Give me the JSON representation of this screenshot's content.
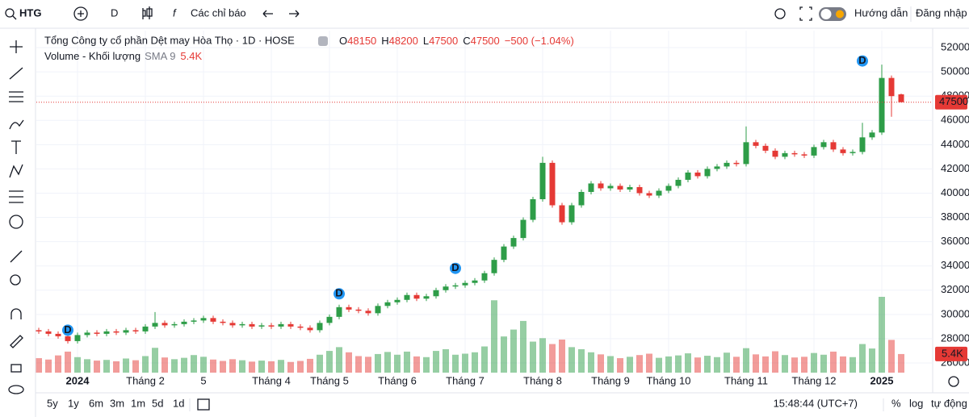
{
  "toolbar": {
    "symbol": "HTG",
    "interval": "D",
    "indicators": "Các chỉ báo",
    "help": "Hướng dẫn",
    "login": "Đăng nhập"
  },
  "legend": {
    "title": "Tổng Công ty cổ phần Dệt may Hòa Thọ · 1D · HOSE",
    "o": "O",
    "h": "H",
    "l": "L",
    "c": "C",
    "change": "−500 (−1.04%)",
    "volume_title": "Volume - Khối lượng",
    "sma": "SMA 9"
  },
  "events": [
    "D",
    "D",
    "D",
    "D"
  ],
  "bottom_bar": {
    "ranges": [
      "5y",
      "1y",
      "6m",
      "3m",
      "1m",
      "5d",
      "1d"
    ],
    "time": "15:48:44 (UTC+7)",
    "percent": "%",
    "log": "log",
    "auto": "tự động"
  },
  "chart_data": {
    "type": "candlestick",
    "up_color": "#2e9d48",
    "down_color": "#e53935",
    "open": [
      28700,
      28600,
      28400,
      28200,
      27800,
      28300,
      28500,
      28400,
      28600,
      28500,
      28700,
      28600,
      29000,
      29300,
      29100,
      29200,
      29400,
      29500,
      29700,
      29400,
      29300,
      29100,
      29200,
      29000,
      29100,
      29000,
      29200,
      29000,
      28900,
      28700,
      29300,
      29800,
      30600,
      30400,
      30300,
      30100,
      30700,
      31000,
      31200,
      31600,
      31300,
      31500,
      32000,
      32300,
      32400,
      32600,
      32800,
      33400,
      34500,
      35600,
      36300,
      37800,
      39500,
      42500,
      39000,
      37600,
      39000,
      40100,
      40800,
      40400,
      40600,
      40300,
      40500,
      40000,
      39800,
      40200,
      40600,
      41100,
      41700,
      41400,
      42000,
      42200,
      42500,
      42400,
      44200,
      43900,
      43500,
      43000,
      43300,
      43200,
      43100,
      43800,
      44200,
      43600,
      43300,
      43400,
      44600,
      45000,
      49500,
      48150
    ],
    "high": [
      28900,
      28800,
      28600,
      28400,
      28500,
      28700,
      28700,
      28800,
      28800,
      28900,
      28900,
      29200,
      30200,
      29500,
      29400,
      29600,
      29700,
      29900,
      29900,
      29600,
      29500,
      29400,
      29400,
      29300,
      29300,
      29400,
      29400,
      29200,
      29100,
      29500,
      30000,
      30800,
      30800,
      30600,
      30500,
      30900,
      31200,
      31400,
      31800,
      31800,
      31700,
      32200,
      32500,
      32600,
      32800,
      33000,
      33600,
      34700,
      35800,
      36500,
      38000,
      39700,
      43000,
      42700,
      39200,
      39200,
      40300,
      41000,
      41000,
      40800,
      40800,
      40700,
      40700,
      40200,
      40400,
      40800,
      41300,
      41900,
      41900,
      42200,
      42400,
      42700,
      42700,
      45500,
      44400,
      44100,
      43700,
      43500,
      43500,
      43400,
      44000,
      44400,
      44400,
      43800,
      43600,
      45800,
      45200,
      50600,
      49700,
      48200
    ],
    "low": [
      28400,
      28200,
      28000,
      27600,
      27600,
      28100,
      28200,
      28200,
      28300,
      28300,
      28400,
      28400,
      28800,
      28900,
      28900,
      29000,
      29200,
      29300,
      29200,
      29100,
      28900,
      28900,
      28800,
      28800,
      28800,
      28800,
      28800,
      28700,
      28500,
      28500,
      29100,
      29600,
      30200,
      30100,
      29900,
      29900,
      30500,
      30800,
      31000,
      31100,
      31100,
      31300,
      31800,
      32100,
      32200,
      32400,
      32600,
      33200,
      34300,
      35400,
      36100,
      37600,
      39300,
      38800,
      37400,
      37400,
      38800,
      39900,
      40200,
      40200,
      40100,
      40100,
      39800,
      39600,
      39600,
      40000,
      40400,
      40900,
      41200,
      41200,
      41800,
      42000,
      42200,
      42200,
      43700,
      43300,
      42800,
      42800,
      43000,
      42900,
      42900,
      43600,
      43400,
      43100,
      43100,
      43200,
      44400,
      44800,
      46300,
      47500
    ],
    "close": [
      28600,
      28400,
      28200,
      27800,
      28300,
      28500,
      28400,
      28600,
      28500,
      28700,
      28600,
      29000,
      29300,
      29100,
      29200,
      29400,
      29500,
      29700,
      29400,
      29300,
      29100,
      29200,
      29000,
      29100,
      29000,
      29200,
      29000,
      28900,
      28700,
      29300,
      29800,
      30600,
      30400,
      30300,
      30100,
      30700,
      31000,
      31200,
      31600,
      31300,
      31500,
      32000,
      32300,
      32400,
      32600,
      32800,
      33400,
      34500,
      35600,
      36300,
      37800,
      39500,
      42500,
      39000,
      37600,
      39000,
      40100,
      40800,
      40400,
      40600,
      40300,
      40500,
      40000,
      39800,
      40200,
      40600,
      41100,
      41700,
      41400,
      42000,
      42200,
      42500,
      42400,
      44200,
      43900,
      43500,
      43000,
      43300,
      43200,
      43100,
      43800,
      44200,
      43600,
      43300,
      43400,
      44600,
      45000,
      49500,
      48000,
      47500
    ],
    "volume": {
      "values": [
        4200,
        3800,
        5000,
        6100,
        4500,
        3900,
        3500,
        3700,
        3300,
        4100,
        3600,
        4800,
        7200,
        4400,
        3900,
        4300,
        5100,
        4600,
        3800,
        3400,
        3900,
        3600,
        3200,
        3500,
        3300,
        3700,
        3100,
        3400,
        4000,
        5200,
        6300,
        7400,
        5900,
        4800,
        4600,
        5400,
        6000,
        5200,
        6100,
        4700,
        4500,
        6300,
        6800,
        5200,
        5500,
        5900,
        7600,
        21000,
        10500,
        12500,
        15000,
        9000,
        10000,
        8300,
        9600,
        7400,
        6800,
        5900,
        5300,
        4800,
        4200,
        4600,
        5100,
        5500,
        4300,
        4700,
        5000,
        5600,
        4400,
        4900,
        4500,
        5800,
        4600,
        7100,
        5300,
        4700,
        6200,
        5100,
        4400,
        4600,
        5700,
        5200,
        6100,
        4700,
        4500,
        8300,
        7000,
        22000,
        9500,
        5400
      ],
      "latest_label": "5.4K"
    },
    "ylim": [
      25200,
      53400
    ],
    "yticks": [
      26000,
      28000,
      30000,
      32000,
      34000,
      36000,
      38000,
      40000,
      42000,
      44000,
      46000,
      48000,
      50000,
      52000
    ],
    "xticks": [
      {
        "value": 4,
        "label": "2024"
      },
      {
        "value": 11,
        "label": "Tháng 2"
      },
      {
        "value": 17,
        "label": "5"
      },
      {
        "value": 24,
        "label": "Tháng 4"
      },
      {
        "value": 30,
        "label": "Tháng 5"
      },
      {
        "value": 37,
        "label": "Tháng 6"
      },
      {
        "value": 44,
        "label": "Tháng 7"
      },
      {
        "value": 52,
        "label": "Tháng 8"
      },
      {
        "value": 59,
        "label": "Tháng 9"
      },
      {
        "value": 65,
        "label": "Tháng 10"
      },
      {
        "value": 73,
        "label": "Tháng 11"
      },
      {
        "value": 80,
        "label": "Tháng 12"
      },
      {
        "value": 87,
        "label": "2025"
      }
    ],
    "grid": true
  }
}
